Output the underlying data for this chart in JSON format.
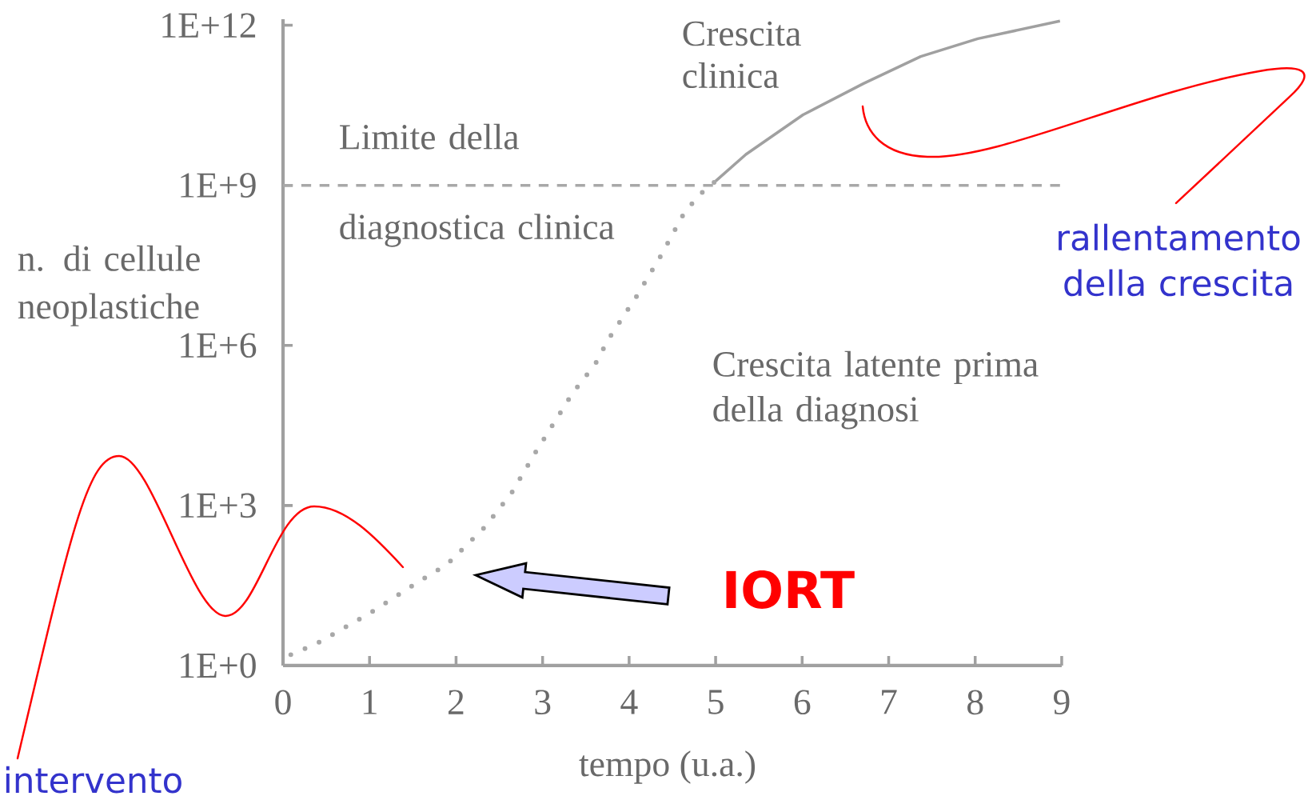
{
  "chart_data": {
    "type": "line",
    "xlabel": "tempo (u.a.)",
    "ylabel": "n. di cellule neoplastiche",
    "log": "y",
    "xlim": [
      0,
      9
    ],
    "xticks": [
      0,
      1,
      2,
      3,
      4,
      5,
      6,
      7,
      8,
      9
    ],
    "ylim": [
      1,
      1300000000000
    ],
    "yticks": [
      {
        "value": 1,
        "label": "1E+0"
      },
      {
        "value": 1000,
        "label": "1E+3"
      },
      {
        "value": 1000000,
        "label": "1E+6"
      },
      {
        "value": 1000000000,
        "label": "1E+9"
      },
      {
        "value": 1000000000000,
        "label": "1E+12"
      }
    ],
    "series": [
      {
        "color": "#a8a8a8",
        "line_style": "dotted",
        "x": [
          0.09,
          0.39,
          0.69,
          1.02,
          1.54,
          1.81,
          1.91,
          2.33,
          2.64,
          2.92,
          3.35,
          3.61,
          3.76,
          4.09,
          4.36,
          4.64,
          4.82,
          5.0
        ],
        "values": [
          1.6,
          2.6,
          4.9,
          10,
          35,
          65,
          83,
          390,
          1700,
          10000,
          130000,
          450000,
          1300000,
          8500000,
          46000000,
          310000000,
          680000000,
          1200000000
        ]
      },
      {
        "color": "#a0a0a0",
        "line_style": "solid",
        "x": [
          5.0,
          5.35,
          6.01,
          6.71,
          7.37,
          8.03,
          8.98
        ],
        "values": [
          1200000000,
          3800000000,
          21000000000,
          81000000000,
          260000000000,
          560000000000,
          1200000000000
        ]
      }
    ],
    "ref_lines": [
      {
        "axis": "y",
        "value": 1000000000,
        "label": "Limite della diagnostica clinica",
        "color": "#a8a8a8",
        "line_style": "dashed"
      }
    ],
    "annotations": [
      "Crescita clinica",
      "Crescita latente prima della diagnosi",
      "rallentamento della crescita",
      "intervento",
      "IORT"
    ]
  }
}
